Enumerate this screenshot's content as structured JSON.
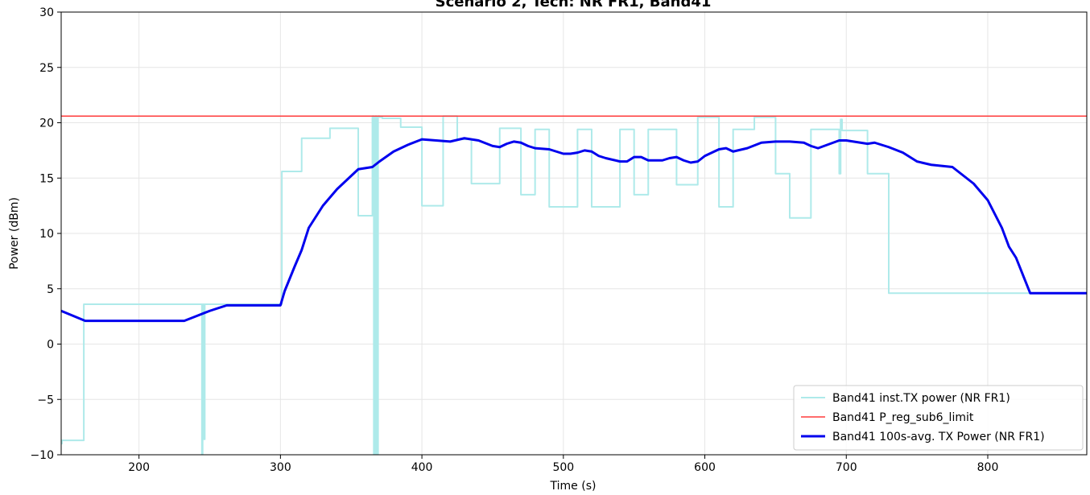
{
  "chart_data": {
    "type": "line",
    "title": "Scenario 2, Tech: NR FR1, Band41",
    "xlabel": "Time (s)",
    "ylabel": "Power (dBm)",
    "xlim": [
      145,
      870
    ],
    "ylim": [
      -10,
      30
    ],
    "xticks": [
      200,
      300,
      400,
      500,
      600,
      700,
      800
    ],
    "yticks": [
      -10,
      -5,
      0,
      5,
      10,
      15,
      20,
      25,
      30
    ],
    "ytick_labels": [
      "−10",
      "−5",
      "0",
      "5",
      "10",
      "15",
      "20",
      "25",
      "30"
    ],
    "grid": true,
    "legend_position": "lower-right",
    "series": [
      {
        "name": "Band41 inst.TX power (NR FR1)",
        "color": "#aeeaea",
        "style": "step",
        "x": [
          145,
          145.5,
          146,
          160,
          161,
          162,
          244,
          244.5,
          245,
          246,
          246.5,
          247,
          300,
          301,
          315,
          335,
          355,
          365,
          366,
          367,
          368,
          369,
          370,
          371,
          372,
          375,
          385,
          395,
          400,
          415,
          425,
          435,
          455,
          470,
          480,
          490,
          510,
          520,
          540,
          550,
          560,
          580,
          595,
          610,
          620,
          635,
          650,
          660,
          675,
          695,
          696,
          697,
          715,
          730,
          870
        ],
        "y": [
          -9,
          -8.7,
          -8.7,
          -8.7,
          3.6,
          3.6,
          3.6,
          -10,
          3.6,
          -8.6,
          3.6,
          3.6,
          3.6,
          15.6,
          18.6,
          19.5,
          11.6,
          20.6,
          -10,
          20.6,
          -10,
          20.6,
          20.5,
          20.5,
          20.4,
          20.4,
          19.6,
          19.6,
          12.5,
          20.6,
          18.5,
          14.5,
          19.5,
          13.5,
          19.4,
          12.4,
          19.4,
          12.4,
          19.4,
          13.5,
          19.4,
          14.4,
          20.5,
          12.4,
          19.4,
          20.5,
          15.4,
          11.4,
          19.4,
          15.4,
          20.3,
          19.3,
          15.4,
          4.6,
          4.7
        ]
      },
      {
        "name": "Band41 P_reg_sub6_limit",
        "color": "#ff3b3b",
        "style": "line",
        "x": [
          145,
          870
        ],
        "y": [
          20.6,
          20.6
        ]
      },
      {
        "name": "Band41 100s-avg. TX Power (NR FR1)",
        "color": "#0000ee",
        "style": "line",
        "x": [
          145,
          162,
          200,
          232,
          240,
          250,
          262,
          300,
          303,
          310,
          315,
          320,
          330,
          340,
          350,
          355,
          365,
          370,
          380,
          390,
          400,
          410,
          420,
          430,
          440,
          450,
          455,
          460,
          465,
          470,
          475,
          480,
          490,
          500,
          505,
          510,
          515,
          520,
          525,
          530,
          540,
          545,
          550,
          555,
          560,
          565,
          570,
          575,
          580,
          585,
          590,
          595,
          600,
          610,
          615,
          620,
          630,
          640,
          650,
          660,
          670,
          675,
          680,
          695,
          700,
          710,
          715,
          720,
          730,
          740,
          750,
          760,
          775,
          790,
          800,
          810,
          815,
          820,
          830,
          840,
          870
        ],
        "y": [
          3.0,
          2.1,
          2.1,
          2.1,
          2.5,
          3.0,
          3.5,
          3.5,
          4.8,
          7.0,
          8.5,
          10.5,
          12.5,
          14.0,
          15.2,
          15.8,
          16.0,
          16.5,
          17.4,
          18.0,
          18.5,
          18.4,
          18.3,
          18.6,
          18.4,
          17.9,
          17.8,
          18.1,
          18.3,
          18.2,
          17.9,
          17.7,
          17.6,
          17.2,
          17.2,
          17.3,
          17.5,
          17.4,
          17.0,
          16.8,
          16.5,
          16.5,
          16.9,
          16.9,
          16.6,
          16.6,
          16.6,
          16.8,
          16.9,
          16.6,
          16.4,
          16.5,
          17.0,
          17.6,
          17.7,
          17.4,
          17.7,
          18.2,
          18.3,
          18.3,
          18.2,
          17.9,
          17.7,
          18.4,
          18.4,
          18.2,
          18.1,
          18.2,
          17.8,
          17.3,
          16.5,
          16.2,
          16.0,
          14.5,
          13.0,
          10.5,
          8.8,
          7.8,
          4.6,
          4.6,
          4.6
        ]
      }
    ]
  }
}
